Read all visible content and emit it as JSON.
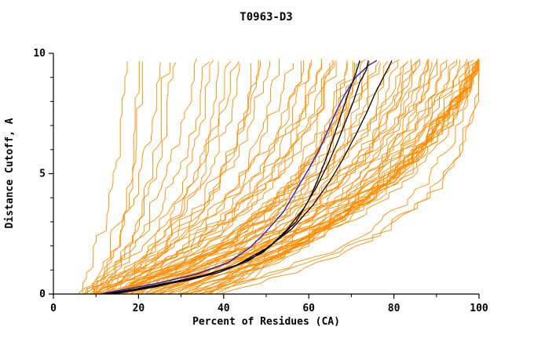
{
  "chart_data": {
    "type": "line",
    "title": "T0963-D3",
    "xlabel": "Percent of Residues (CA)",
    "ylabel": "Distance Cutoff, A",
    "xlim": [
      0,
      100
    ],
    "ylim": [
      0,
      10
    ],
    "x_ticks": [
      0,
      20,
      40,
      60,
      80,
      100
    ],
    "x_minor_ticks": [
      10,
      30,
      50,
      70,
      90
    ],
    "y_ticks": [
      0,
      5,
      10
    ],
    "y_minor_ticks": [
      1,
      2,
      3,
      4,
      6,
      7,
      8,
      9
    ],
    "grid": false,
    "legend": null,
    "colors": {
      "ensemble": "#ff8c00",
      "model_highlight": "#000000",
      "model_reference": "#2121cc"
    },
    "ensemble_top_cutoff": 9.7,
    "ensemble_param_format": "[percent_at_cutoff0, percent_at_top_cutoff, shape_tau, seed]",
    "ensemble_series": [
      [
        6,
        16,
        0.5,
        1
      ],
      [
        7,
        20,
        0.4,
        2
      ],
      [
        8,
        24,
        0.5,
        3
      ],
      [
        9,
        19,
        0.3,
        4
      ],
      [
        10,
        28,
        0.6,
        5
      ],
      [
        8,
        32,
        0.4,
        6
      ],
      [
        12,
        26,
        0.5,
        7
      ],
      [
        7,
        36,
        0.35,
        8
      ],
      [
        9,
        40,
        0.4,
        9
      ],
      [
        10,
        44,
        0.5,
        10
      ],
      [
        12,
        38,
        0.3,
        11
      ],
      [
        8,
        48,
        0.45,
        12
      ],
      [
        11,
        50,
        0.5,
        13
      ],
      [
        13,
        42,
        0.6,
        14
      ],
      [
        9,
        46,
        0.35,
        15
      ],
      [
        14,
        52,
        0.4,
        16
      ],
      [
        10,
        55,
        0.5,
        17
      ],
      [
        12,
        58,
        0.45,
        18
      ],
      [
        15,
        48,
        0.55,
        19
      ],
      [
        8,
        60,
        0.35,
        20
      ],
      [
        10,
        62,
        0.4,
        21
      ],
      [
        12,
        64,
        0.3,
        22
      ],
      [
        14,
        60,
        0.5,
        23
      ],
      [
        9,
        66,
        0.45,
        24
      ],
      [
        11,
        68,
        0.35,
        25
      ],
      [
        13,
        70,
        0.4,
        26
      ],
      [
        15,
        65,
        0.5,
        27
      ],
      [
        16,
        62,
        0.6,
        28
      ],
      [
        10,
        70,
        0.3,
        29
      ],
      [
        12,
        72,
        0.45,
        30
      ],
      [
        14,
        68,
        0.35,
        31
      ],
      [
        17,
        66,
        0.55,
        32
      ],
      [
        11,
        73,
        0.4,
        33
      ],
      [
        13,
        75,
        0.5,
        34
      ],
      [
        18,
        70,
        0.45,
        35
      ],
      [
        16,
        74,
        0.35,
        36
      ],
      [
        12,
        76,
        0.4,
        37
      ],
      [
        20,
        72,
        0.6,
        38
      ],
      [
        15,
        78,
        0.5,
        39
      ],
      [
        12,
        80,
        0.4,
        40
      ],
      [
        14,
        82,
        0.35,
        41
      ],
      [
        16,
        84,
        0.45,
        42
      ],
      [
        18,
        80,
        0.5,
        43
      ],
      [
        20,
        86,
        0.4,
        44
      ],
      [
        22,
        82,
        0.6,
        45
      ],
      [
        15,
        88,
        0.35,
        46
      ],
      [
        17,
        85,
        0.45,
        47
      ],
      [
        19,
        87,
        0.5,
        48
      ],
      [
        24,
        84,
        0.55,
        49
      ],
      [
        13,
        89,
        0.4,
        50
      ],
      [
        21,
        90,
        0.45,
        51
      ],
      [
        25,
        88,
        0.6,
        52
      ],
      [
        16,
        91,
        0.35,
        53
      ],
      [
        23,
        92,
        0.5,
        54
      ],
      [
        27,
        90,
        0.65,
        55
      ],
      [
        18,
        93,
        0.4,
        56
      ],
      [
        26,
        94,
        0.55,
        57
      ],
      [
        22,
        95,
        0.45,
        58
      ],
      [
        28,
        96,
        0.6,
        59
      ],
      [
        20,
        97,
        0.5,
        60
      ],
      [
        24,
        98,
        0.45,
        61
      ],
      [
        30,
        99,
        0.55,
        62
      ],
      [
        26,
        100,
        0.5,
        63
      ],
      [
        32,
        100,
        0.6,
        64
      ],
      [
        35,
        100,
        0.7,
        65
      ],
      [
        28,
        99,
        0.4,
        66
      ],
      [
        34,
        100,
        0.65,
        67
      ],
      [
        30,
        100,
        0.5,
        68
      ],
      [
        36,
        100,
        0.8,
        69
      ],
      [
        25,
        100,
        0.45,
        70
      ],
      [
        38,
        100,
        0.7,
        71
      ],
      [
        33,
        99,
        0.6,
        72
      ],
      [
        29,
        100,
        0.5,
        73
      ],
      [
        37,
        100,
        0.75,
        74
      ],
      [
        31,
        98,
        0.55,
        75
      ],
      [
        22,
        99,
        0.4,
        76
      ],
      [
        35,
        99,
        0.65,
        77
      ],
      [
        30,
        100,
        0.25,
        78
      ],
      [
        34,
        98,
        0.3,
        79
      ],
      [
        38,
        100,
        0.28,
        80
      ],
      [
        5,
        35,
        0.4,
        81
      ],
      [
        6,
        58,
        0.45,
        82
      ]
    ],
    "highlight_series": [
      {
        "name": "model-black-1",
        "color": "#000000",
        "width": 1.3,
        "points": [
          [
            12,
            0
          ],
          [
            19,
            0.2
          ],
          [
            28,
            0.5
          ],
          [
            36,
            0.8
          ],
          [
            43,
            1.2
          ],
          [
            49,
            1.7
          ],
          [
            53,
            2.3
          ],
          [
            57,
            3.0
          ],
          [
            60,
            3.9
          ],
          [
            62,
            4.7
          ],
          [
            64,
            5.6
          ],
          [
            66,
            6.6
          ],
          [
            67.5,
            7.4
          ],
          [
            69,
            8.2
          ],
          [
            70.5,
            8.9
          ],
          [
            71.5,
            9.4
          ],
          [
            72,
            9.7
          ]
        ]
      },
      {
        "name": "model-black-2",
        "color": "#000000",
        "width": 1.3,
        "points": [
          [
            13,
            0
          ],
          [
            21,
            0.25
          ],
          [
            31,
            0.55
          ],
          [
            39,
            0.9
          ],
          [
            46,
            1.4
          ],
          [
            51,
            2.0
          ],
          [
            55,
            2.7
          ],
          [
            59,
            3.6
          ],
          [
            62,
            4.5
          ],
          [
            64.5,
            5.4
          ],
          [
            66.5,
            6.2
          ],
          [
            68.5,
            7.1
          ],
          [
            70.5,
            8.0
          ],
          [
            72,
            8.8
          ],
          [
            73.5,
            9.3
          ],
          [
            74,
            9.7
          ]
        ]
      },
      {
        "name": "model-black-3",
        "color": "#000000",
        "width": 1.3,
        "points": [
          [
            14,
            0
          ],
          [
            24,
            0.3
          ],
          [
            34,
            0.7
          ],
          [
            43,
            1.2
          ],
          [
            50,
            1.9
          ],
          [
            56,
            2.7
          ],
          [
            61,
            3.7
          ],
          [
            65,
            4.7
          ],
          [
            68,
            5.6
          ],
          [
            71,
            6.6
          ],
          [
            73.5,
            7.5
          ],
          [
            75.5,
            8.3
          ],
          [
            77.5,
            9.0
          ],
          [
            79,
            9.5
          ],
          [
            79.5,
            9.7
          ]
        ]
      },
      {
        "name": "model-blue",
        "color": "#2121cc",
        "width": 1.4,
        "points": [
          [
            11,
            0
          ],
          [
            17,
            0.2
          ],
          [
            26,
            0.5
          ],
          [
            34,
            0.85
          ],
          [
            41,
            1.3
          ],
          [
            46,
            1.9
          ],
          [
            50,
            2.6
          ],
          [
            54,
            3.4
          ],
          [
            57,
            4.3
          ],
          [
            60,
            5.2
          ],
          [
            62.5,
            6.0
          ],
          [
            64.5,
            6.8
          ],
          [
            66.5,
            7.6
          ],
          [
            68.5,
            8.3
          ],
          [
            71,
            9.0
          ],
          [
            74,
            9.5
          ],
          [
            76,
            9.7
          ]
        ]
      }
    ]
  }
}
